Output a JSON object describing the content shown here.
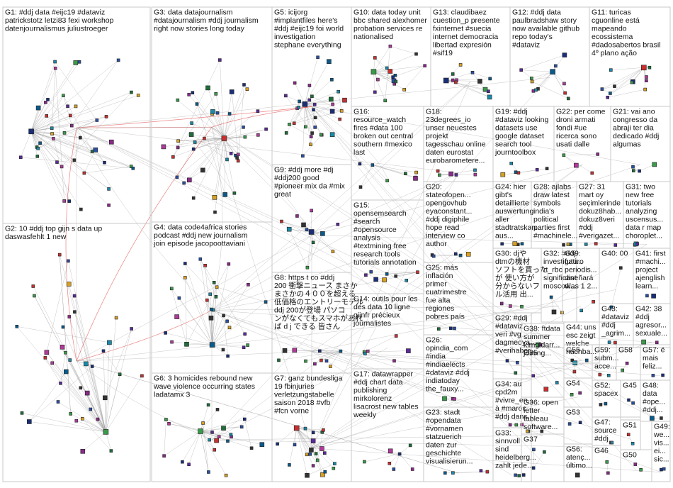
{
  "title": "",
  "groups": [
    {
      "id": "G1",
      "lines": [
        "G1: #ddj data #eijc19 #dataviz",
        "patrickstotz letzi83 fexi workshop",
        "datenjournalismus juliustroeger"
      ],
      "nodes": 44
    },
    {
      "id": "G2",
      "lines": [
        "G2: 10 #ddj top gijn s data up",
        "daswasfehlt 1 new"
      ],
      "nodes": 40
    },
    {
      "id": "G3",
      "lines": [
        "G3: data datajournalism",
        "#datajournalism #ddj journalism",
        "right now stories long today"
      ],
      "nodes": 44
    },
    {
      "id": "G4",
      "lines": [
        "G4: data code4africa stories",
        "podcast #ddj new journalism",
        "join episode jacopoottaviani"
      ],
      "nodes": 30
    },
    {
      "id": "G5",
      "lines": [
        "G5: icijorg",
        "#implantfiles here's",
        "#ddj #eijc19 foi world",
        "investigation",
        "stephane everything"
      ],
      "nodes": 34
    },
    {
      "id": "G6",
      "lines": [
        "G6: 3 homicides rebound new",
        "wave violence occurring states",
        "ladatamx 3"
      ],
      "nodes": 24
    },
    {
      "id": "G7",
      "lines": [
        "G7: ganz bundesliga",
        "19 fbinjuries",
        "verletzungstabelle",
        "saison 2018 #vfb",
        "#fcn vorne"
      ],
      "nodes": 22
    },
    {
      "id": "G8",
      "lines": [
        "G8: https t co #ddj",
        "200 衝撃ニュース まさか",
        "まさかの４００を超える",
        "低価格のエントリーモデル",
        "ddj 200が登場 パソコ",
        "ンがなくてもスマホがあれ",
        "ば d j できる 皆さん"
      ],
      "nodes": 10
    },
    {
      "id": "G9",
      "lines": [
        "G9: #ddj more #dj",
        "#ddj200 good",
        "#pioneer mix da #mix",
        "great"
      ],
      "nodes": 12
    },
    {
      "id": "G10",
      "lines": [
        "G10: data today unit",
        "bbc shared alexhomer",
        "probation services re",
        "nationalised"
      ],
      "nodes": 16
    },
    {
      "id": "G11",
      "lines": [
        "G11: turicas",
        "cguonline está",
        "mapeando",
        "ecossistema",
        "#dadosabertos brasil",
        "4º plano ação"
      ],
      "nodes": 12
    },
    {
      "id": "G12",
      "lines": [
        "G12: #ddj data",
        "paulbradshaw story",
        "now available github",
        "repo today's",
        "#dataviz"
      ],
      "nodes": 12
    },
    {
      "id": "G13",
      "lines": [
        "G13: claudibaez",
        "cuestion_p presente",
        "fxinternet #suecia",
        "internet democracia",
        "libertad expresión",
        "#sif19"
      ],
      "nodes": 12
    },
    {
      "id": "G14",
      "lines": [
        "G14: outils pour les",
        "des data 10 ligne",
        "gijnfr précieux",
        "journalistes"
      ],
      "nodes": 6
    },
    {
      "id": "G15",
      "lines": [
        "G15:",
        "opensemsearch",
        "#search",
        "#opensource",
        "analysis",
        "#textmining free",
        "research tools",
        "tutorials annotation"
      ],
      "nodes": 8
    },
    {
      "id": "G16",
      "lines": [
        "G16:",
        "resource_watch",
        "fires #data 100",
        "broken out central",
        "southern #mexico",
        "last"
      ],
      "nodes": 8
    },
    {
      "id": "G17",
      "lines": [
        "G17: datawrapper",
        "#ddj chart data",
        "publishing",
        "mirkolorenz",
        "lisacrost new tables",
        "weekly"
      ],
      "nodes": 7
    },
    {
      "id": "G18",
      "lines": [
        "G18:",
        "23degrees_io",
        "unser neuestes",
        "projekt",
        "tagesschau online",
        "daten eurostat",
        "eurobarometere..."
      ],
      "nodes": 6
    },
    {
      "id": "G19",
      "lines": [
        "G19: #ddj",
        "#dataviz looking",
        "datasets use",
        "google dataset",
        "search tool",
        "journtoolbox"
      ],
      "nodes": 6
    },
    {
      "id": "G20",
      "lines": [
        "G20:",
        "stateofopen...",
        "opengovhub",
        "eyaconstant...",
        "#ddj digiphile",
        "hope read",
        "interview co",
        "author"
      ],
      "nodes": 5
    },
    {
      "id": "G21",
      "lines": [
        "G21: vai ano",
        "congresso da",
        "abraji ter dia",
        "dedicado #ddj",
        "algumas"
      ],
      "nodes": 4
    },
    {
      "id": "G22",
      "lines": [
        "G22: per come",
        "droni armati",
        "fondi #ue",
        "ricerca sono",
        "usati dalle"
      ],
      "nodes": 4
    },
    {
      "id": "G23",
      "lines": [
        "G23: stadt",
        "#opendata",
        "#vornamen",
        "statzuerich",
        "daten zur",
        "geschichte",
        "visualisierun..."
      ],
      "nodes": 4
    },
    {
      "id": "G24",
      "lines": [
        "G24: hier",
        "gibt's",
        "detaillierte",
        "auswertung",
        "aller",
        "stadtratskan...",
        "aus..."
      ],
      "nodes": 4
    },
    {
      "id": "G25",
      "lines": [
        "G25: más",
        "inflación",
        "primer",
        "cuatrimestre",
        "fue alta",
        "regiones",
        "pobres país"
      ],
      "nodes": 3
    },
    {
      "id": "G26",
      "lines": [
        "G26:",
        "opindia_com",
        "#india",
        "#indiaelects",
        "#dataviz #ddj",
        "indiatoday",
        "the_fauxy..."
      ],
      "nodes": 3
    },
    {
      "id": "G27",
      "lines": [
        "G27: 31",
        "mart oy",
        "seçimlerinde",
        "dokuz8hab...",
        "dokuz8veri",
        "#ddj",
        "#verigazet..."
      ],
      "nodes": 3
    },
    {
      "id": "G28",
      "lines": [
        "G28: ajlabs",
        "draw latest",
        "symbols",
        "india's",
        "political",
        "parties first",
        "#machinele..."
      ],
      "nodes": 3
    },
    {
      "id": "G29",
      "lines": [
        "G29: #ddj",
        "#dataviz",
        "veri #vg",
        "dagmedya...",
        "#verihaber..."
      ],
      "nodes": 3
    },
    {
      "id": "G30",
      "lines": [
        "G30: djや",
        "dtmの機材",
        "ソフトを買った",
        "が 使い方が",
        "分からないフ",
        "ル活用 出..."
      ],
      "nodes": 3
    },
    {
      "id": "G31",
      "lines": [
        "G31: two",
        "new free",
        "tutorials",
        "analyzing",
        "uscensus...",
        "data r map",
        "choroplet..."
      ],
      "nodes": 3
    },
    {
      "id": "G32",
      "lines": [
        "G32: #ddj",
        "investigati...",
        "rt_rbc",
        "significant",
        "moscow..."
      ],
      "nodes": 3
    },
    {
      "id": "G33",
      "lines": [
        "G33:",
        "sinnvoll",
        "sind",
        "heidelberg...",
        "zahlt jede..."
      ],
      "nodes": 3
    },
    {
      "id": "G34",
      "lines": [
        "G34: au",
        "cpd2m",
        "#vivre_en...",
        "à #maroc",
        "#ddj dans..."
      ],
      "nodes": 3
    },
    {
      "id": "G35",
      "lines": [
        "G35"
      ],
      "nodes": 3
    },
    {
      "id": "G36",
      "lines": [
        "G36: open",
        "letter",
        "tableau",
        "software..."
      ],
      "nodes": 3
    },
    {
      "id": "G37",
      "lines": [
        "G37"
      ],
      "nodes": 3
    },
    {
      "id": "G38",
      "lines": [
        "G38: ftdata",
        "summer",
        "kimgidarr...",
        "joining..."
      ],
      "nodes": 2
    },
    {
      "id": "G39",
      "lines": [
        "G39:",
        "futuro",
        "periodis...",
        "diseñará",
        "días 1 2..."
      ],
      "nodes": 2
    },
    {
      "id": "G40",
      "lines": [
        "G40: 00"
      ],
      "nodes": 2
    },
    {
      "id": "G41",
      "lines": [
        "G41: first",
        "#machi...",
        "project",
        "ajenglish",
        "learn..."
      ],
      "nodes": 2
    },
    {
      "id": "G42",
      "lines": [
        "G42: 38",
        "#ddj",
        "agresor...",
        "sexuale..."
      ],
      "nodes": 2
    },
    {
      "id": "G43",
      "lines": [
        "G43:",
        "#dataviz",
        "#ddj",
        "_agrim..."
      ],
      "nodes": 2
    },
    {
      "id": "G44",
      "lines": [
        "G44: uns",
        "esc zeigt",
        "welche",
        "nachba..."
      ],
      "nodes": 2
    },
    {
      "id": "G45",
      "lines": [
        "G45"
      ],
      "nodes": 2
    },
    {
      "id": "G46",
      "lines": [
        "G46"
      ],
      "nodes": 2
    },
    {
      "id": "G47",
      "lines": [
        "G47:",
        "source",
        "#ddj"
      ],
      "nodes": 2
    },
    {
      "id": "G48",
      "lines": [
        "G48:",
        "data",
        "#ope...",
        "#ddj..."
      ],
      "nodes": 2
    },
    {
      "id": "G49",
      "lines": [
        "G49:",
        "we...",
        "vis...",
        "ei...",
        "sic..."
      ],
      "nodes": 2
    },
    {
      "id": "G50",
      "lines": [
        "G50"
      ],
      "nodes": 2
    },
    {
      "id": "G51",
      "lines": [
        "G51"
      ],
      "nodes": 2
    },
    {
      "id": "G52",
      "lines": [
        "G52:",
        "spacex"
      ],
      "nodes": 2
    },
    {
      "id": "G53",
      "lines": [
        "G53"
      ],
      "nodes": 2
    },
    {
      "id": "G54",
      "lines": [
        "G54"
      ],
      "nodes": 2
    },
    {
      "id": "G55",
      "lines": [
        "G55"
      ],
      "nodes": 2
    },
    {
      "id": "G56",
      "lines": [
        "G56:",
        "atenç...",
        "último..."
      ],
      "nodes": 2
    },
    {
      "id": "G57",
      "lines": [
        "G57: é",
        "mais",
        "feliz..."
      ],
      "nodes": 2
    },
    {
      "id": "G58",
      "lines": [
        "G58"
      ],
      "nodes": 2
    },
    {
      "id": "G59",
      "lines": [
        "G59:",
        "subm...",
        "acce..."
      ],
      "nodes": 2
    }
  ],
  "colors": {
    "group_border": "#c9c9c9",
    "edge": "#9a9a9a",
    "cross_edge": "#e03030",
    "label": "#111111",
    "node_palette": [
      "#1a2e78",
      "#2a4fa3",
      "#1f6e3a",
      "#3a9a4a",
      "#8a2a8a",
      "#b03a9a",
      "#c83030",
      "#1a8aa8",
      "#5a2a9a",
      "#0a5a8a",
      "#333333",
      "#d8a020"
    ]
  }
}
